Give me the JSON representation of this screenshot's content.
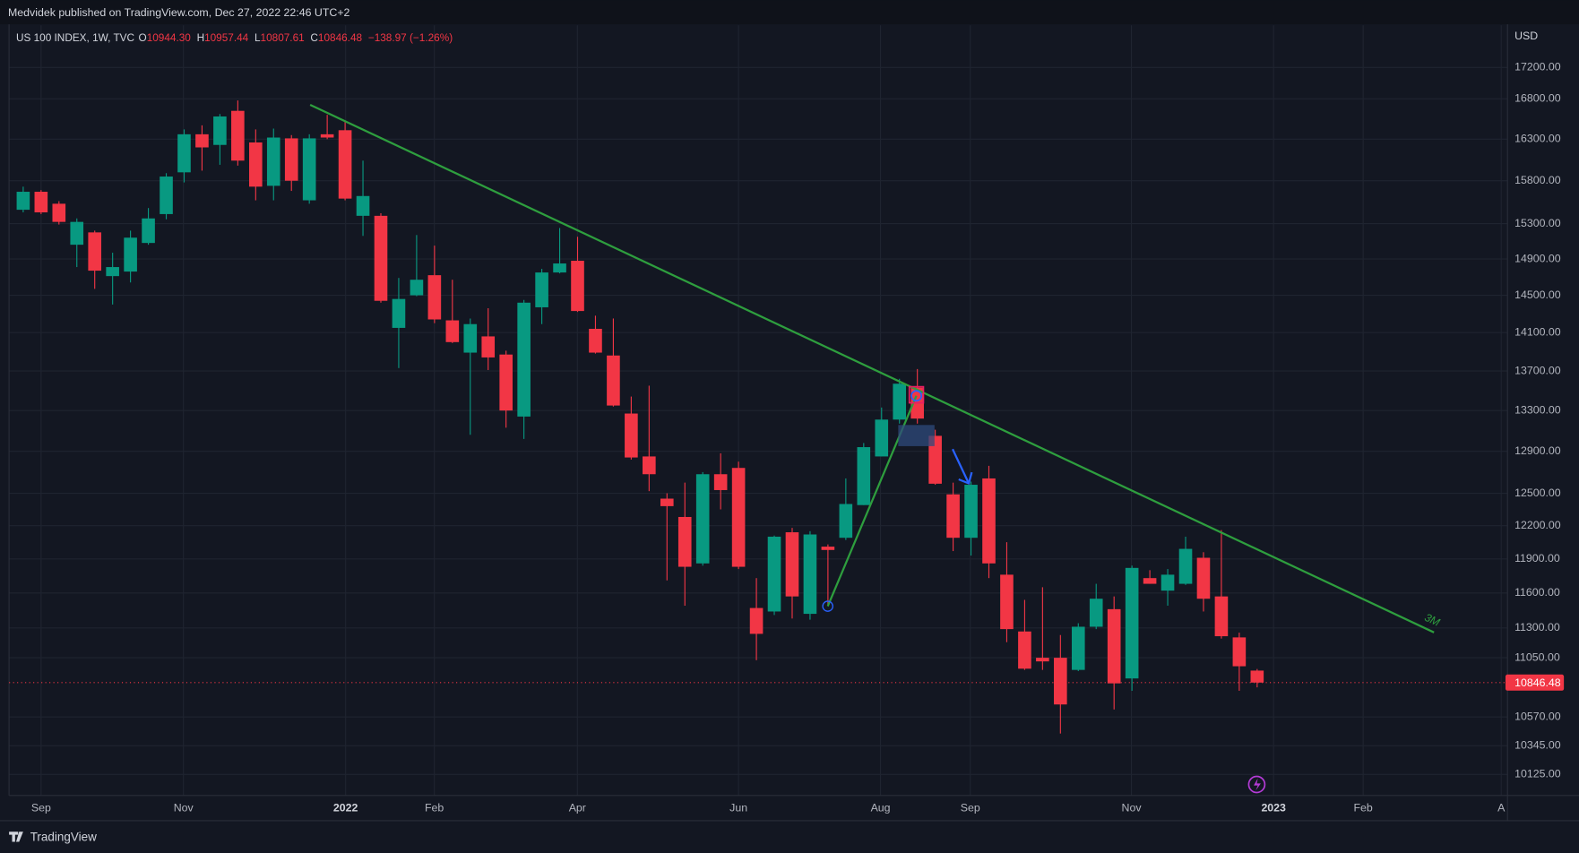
{
  "chart_data": {
    "type": "candlestick",
    "published": "Medvidek published on TradingView.com, Dec 27, 2022 22:46 UTC+2",
    "symbol": "US 100 INDEX, 1W, TVC",
    "legend": [
      {
        "key": "O",
        "text": "10944.30"
      },
      {
        "key": "H",
        "text": "10957.44"
      },
      {
        "key": "L",
        "text": "10807.61"
      },
      {
        "key": "C",
        "text": "10846.48"
      }
    ],
    "change": "−138.97 (−1.26%)",
    "currency": "USD",
    "brand": "TradingView",
    "annotation": "3M",
    "up_color": "#089981",
    "down_color": "#f23645",
    "log_scale": true,
    "grid": true,
    "open": [
      15460,
      15670,
      15530,
      15060,
      15200,
      14710,
      14760,
      15080,
      15410,
      15900,
      16360,
      16230,
      16650,
      16260,
      15740,
      16310,
      15570,
      16360,
      16410,
      15390,
      15390,
      14150,
      14500,
      14720,
      14230,
      13890,
      14060,
      13870,
      13240,
      14370,
      14750,
      14880,
      14140,
      13860,
      13270,
      12850,
      12450,
      12280,
      11860,
      12680,
      12740,
      11470,
      11440,
      12140,
      11420,
      12010,
      12090,
      12390,
      12850,
      13210,
      13530,
      13050,
      12490,
      12090,
      12640,
      11760,
      11270,
      11050,
      11050,
      10950,
      11310,
      11460,
      10880,
      11730,
      11620,
      11680,
      11910,
      11570,
      11220,
      10944.3
    ],
    "high": [
      15730,
      15690,
      15560,
      15360,
      15220,
      14970,
      15220,
      15480,
      15890,
      16420,
      16470,
      16610,
      16780,
      16420,
      16430,
      16350,
      16360,
      16600,
      16520,
      16040,
      15420,
      14690,
      15170,
      15050,
      14670,
      14250,
      14360,
      13910,
      14450,
      14790,
      15250,
      15150,
      14280,
      14250,
      13440,
      13550,
      12500,
      12600,
      12700,
      12880,
      12800,
      11730,
      12110,
      12180,
      12150,
      12030,
      12640,
      12980,
      13330,
      13620,
      13720,
      13110,
      12600,
      12610,
      12760,
      12050,
      11540,
      11650,
      11240,
      11340,
      11680,
      11570,
      11840,
      11800,
      11810,
      12100,
      11960,
      12160,
      11260,
      10957.44
    ],
    "low": [
      15430,
      15410,
      15290,
      14810,
      14570,
      14400,
      14640,
      15060,
      15350,
      15780,
      15920,
      15990,
      15980,
      15570,
      15570,
      15680,
      15530,
      16300,
      15570,
      15160,
      14420,
      13730,
      14490,
      14200,
      13990,
      13060,
      13710,
      13130,
      13020,
      14190,
      14740,
      14320,
      13880,
      13340,
      12820,
      12520,
      11710,
      11490,
      11840,
      12350,
      11810,
      11030,
      11410,
      11380,
      11370,
      11490,
      12070,
      12390,
      12850,
      13170,
      13170,
      12580,
      11970,
      11930,
      11730,
      11180,
      10950,
      10950,
      10440,
      10940,
      11290,
      10630,
      10780,
      11680,
      11490,
      11670,
      11440,
      11210,
      10780,
      10807.61
    ],
    "close": [
      15670,
      15430,
      15320,
      15320,
      14770,
      14810,
      15140,
      15360,
      15850,
      16360,
      16200,
      16580,
      16040,
      15730,
      16320,
      15800,
      16310,
      16320,
      15590,
      15620,
      14440,
      14460,
      14670,
      14240,
      14000,
      14190,
      13840,
      13300,
      14420,
      14750,
      14850,
      14330,
      13890,
      13350,
      12840,
      12680,
      12380,
      11830,
      12680,
      12530,
      11830,
      11250,
      12100,
      11570,
      12120,
      11980,
      12400,
      12940,
      13210,
      13570,
      13220,
      12590,
      12090,
      12580,
      11860,
      11290,
      10960,
      11020,
      10670,
      11310,
      11550,
      10840,
      11820,
      11680,
      11760,
      11990,
      11550,
      11230,
      10980,
      10846.48
    ],
    "last_price": {
      "value": 10846.48,
      "label": "10846.48"
    },
    "xlim": [
      -0.79,
      83.0
    ],
    "ylim": [
      9966,
      17753
    ],
    "xticks": [
      {
        "value": 1.0,
        "label": "Sep"
      },
      {
        "value": 8.96,
        "label": "Nov"
      },
      {
        "value": 18.03,
        "label": "2022"
      },
      {
        "value": 22.99,
        "label": "Feb"
      },
      {
        "value": 30.99,
        "label": "Apr"
      },
      {
        "value": 40.0,
        "label": "Jun"
      },
      {
        "value": 47.94,
        "label": "Aug"
      },
      {
        "value": 52.96,
        "label": "Sep"
      },
      {
        "value": 61.97,
        "label": "Nov"
      },
      {
        "value": 69.92,
        "label": "2023"
      },
      {
        "value": 74.93,
        "label": "Feb"
      },
      {
        "value": 82.65,
        "label": "A"
      }
    ],
    "yticks": [
      {
        "value": 17200,
        "label": "17200.00"
      },
      {
        "value": 16800,
        "label": "16800.00"
      },
      {
        "value": 16300,
        "label": "16300.00"
      },
      {
        "value": 15800,
        "label": "15800.00"
      },
      {
        "value": 15300,
        "label": "15300.00"
      },
      {
        "value": 14900,
        "label": "14900.00"
      },
      {
        "value": 14500,
        "label": "14500.00"
      },
      {
        "value": 14100,
        "label": "14100.00"
      },
      {
        "value": 13700,
        "label": "13700.00"
      },
      {
        "value": 13300,
        "label": "13300.00"
      },
      {
        "value": 12900,
        "label": "12900.00"
      },
      {
        "value": 12500,
        "label": "12500.00"
      },
      {
        "value": 12200,
        "label": "12200.00"
      },
      {
        "value": 11900,
        "label": "11900.00"
      },
      {
        "value": 11600,
        "label": "11600.00"
      },
      {
        "value": 11300,
        "label": "11300.00"
      },
      {
        "value": 11050,
        "label": "11050.00"
      },
      {
        "value": 10570,
        "label": "10570.00"
      },
      {
        "value": 10345,
        "label": "10345.00"
      },
      {
        "value": 10125,
        "label": "10125.00"
      }
    ]
  }
}
